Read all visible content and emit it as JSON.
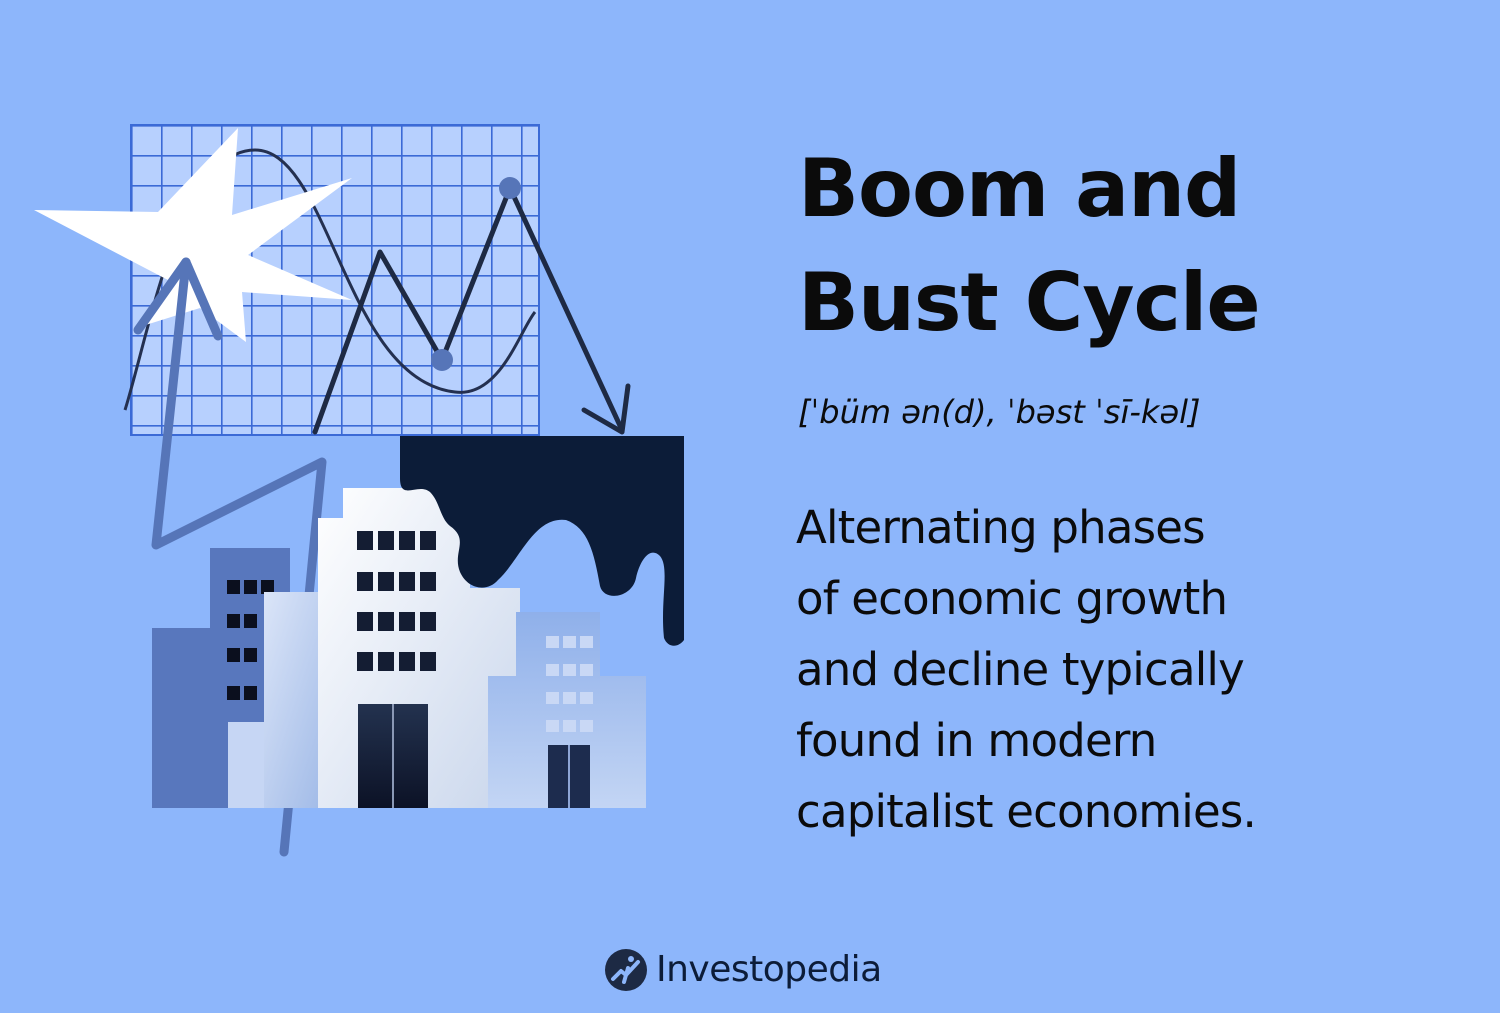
{
  "title": {
    "line1": "Boom and",
    "line2": "Bust Cycle"
  },
  "pronunciation": "[ˈbüm ən(d), ˈbəst ˈsī-kəl]",
  "definition": {
    "lines": [
      "Alternating phases",
      "of economic growth",
      "and decline typically",
      "found in modern",
      "capitalist economies."
    ]
  },
  "brand": {
    "name": "Investopedia",
    "logo_icon": "investopedia-logo-icon"
  },
  "illustration": {
    "icons": [
      "grid-chart",
      "starburst",
      "zigzag-arrow",
      "wave-line",
      "city-buildings",
      "dripping-ink"
    ]
  },
  "colors": {
    "background": "#8db6fb",
    "text": "#0b0b0b",
    "navy": "#0c1c38",
    "mid_blue": "#5675b8",
    "grid_fill": "#b7d0fe",
    "grid_line": "#3b6ad6"
  }
}
